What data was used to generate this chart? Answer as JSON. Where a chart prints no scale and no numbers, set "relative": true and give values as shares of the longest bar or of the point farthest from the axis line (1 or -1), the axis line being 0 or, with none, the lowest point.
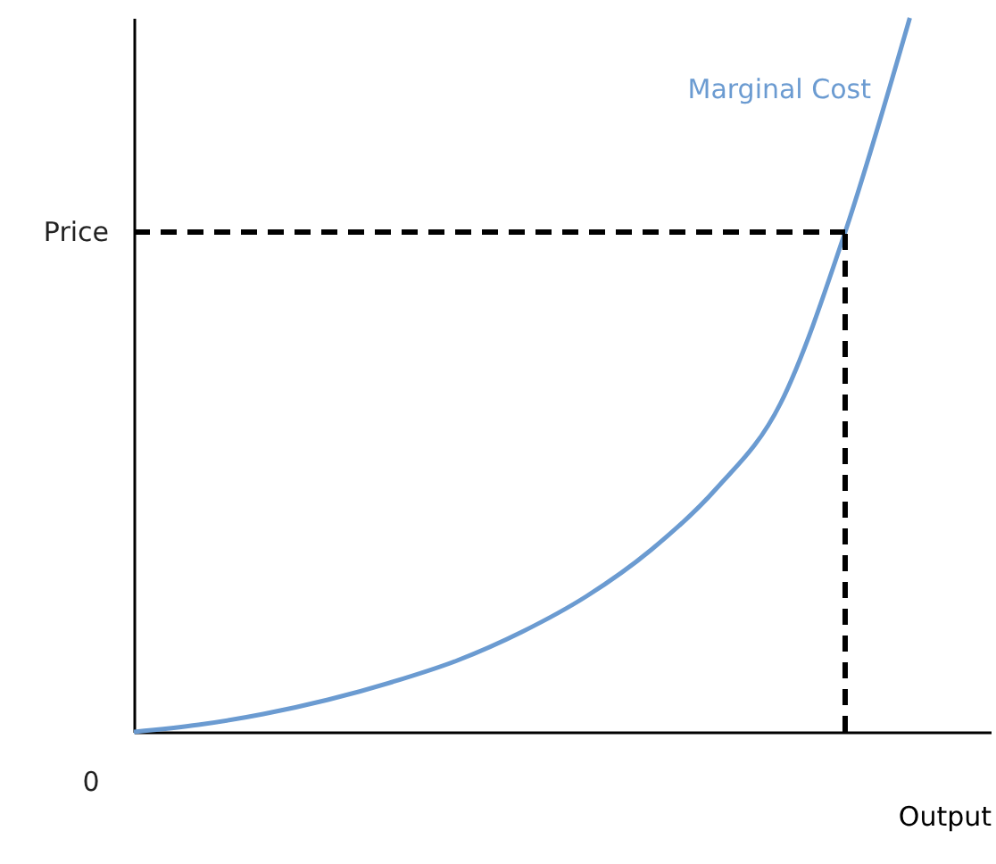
{
  "chart_data": {
    "type": "line",
    "relative": true,
    "xlabel": "Output",
    "categories": [
      null,
      null,
      null,
      null,
      null,
      null,
      null,
      null,
      null,
      null,
      null,
      null,
      null
    ],
    "series": [
      {
        "name": "Marginal Cost",
        "color": "#6b9bd1",
        "values": [
          0,
          0.01,
          0.025,
          0.045,
          0.07,
          0.1,
          0.14,
          0.19,
          0.255,
          0.34,
          0.46,
          0.7,
          1
        ]
      }
    ],
    "ref_lines": [
      {
        "axis": "y",
        "value": 0.7,
        "label": "Price",
        "color": "#000000",
        "line_style": "dashed"
      }
    ],
    "annotations": [
      "0"
    ]
  }
}
